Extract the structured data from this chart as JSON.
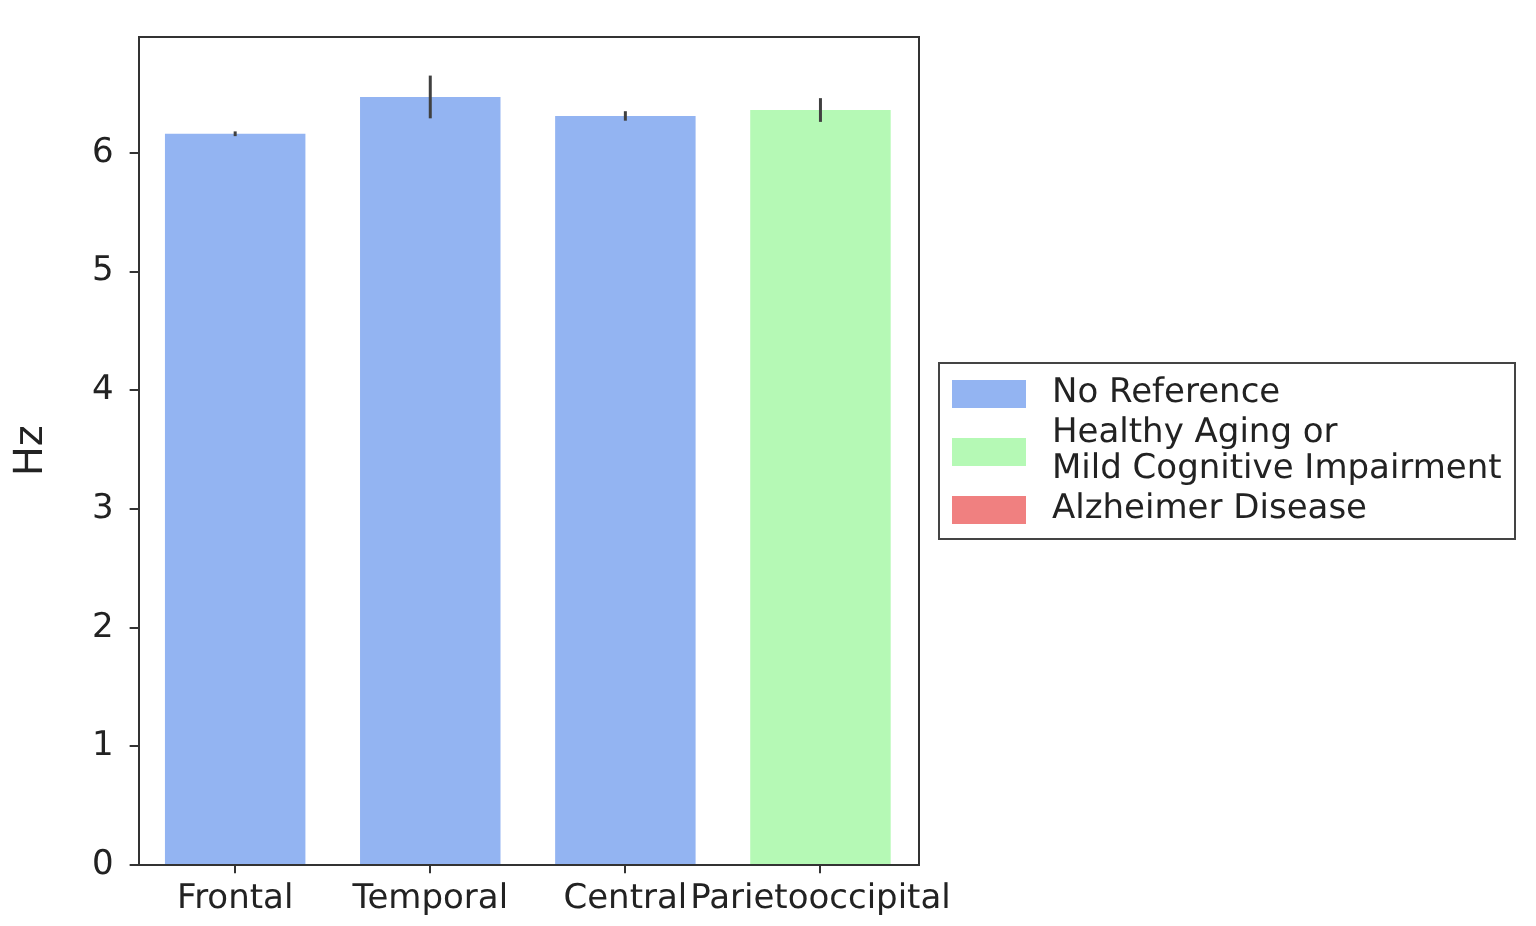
{
  "chart_data": {
    "type": "bar",
    "ylabel": "Hz",
    "categories": [
      "Frontal",
      "Temporal",
      "Central",
      "Parietooccipital"
    ],
    "series": [
      {
        "name": "No Reference",
        "color": "#93b4f2",
        "values": [
          6.16,
          6.47,
          6.31,
          null
        ],
        "errors": [
          0.02,
          0.18,
          0.04,
          null
        ]
      },
      {
        "name": "Healthy Aging or\nMild Cognitive Impairment",
        "color": "#b5f9b5",
        "values": [
          null,
          null,
          null,
          6.36
        ],
        "errors": [
          null,
          null,
          null,
          0.1
        ]
      },
      {
        "name": "Alzheimer Disease",
        "color": "#f08080",
        "values": [
          null,
          null,
          null,
          null
        ]
      }
    ],
    "ylim": [
      0,
      6.98
    ],
    "yticks": [
      0,
      1,
      2,
      3,
      4,
      5,
      6
    ],
    "legend": "right"
  }
}
